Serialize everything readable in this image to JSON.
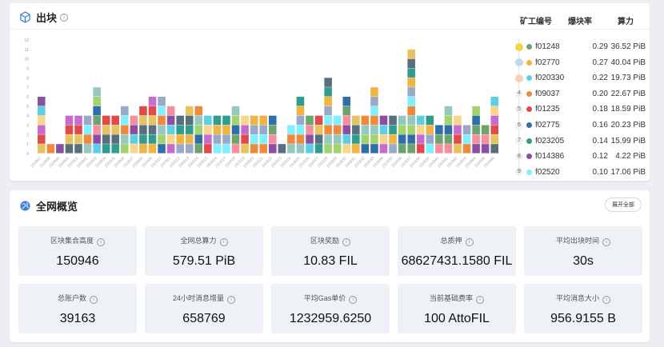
{
  "block_section": {
    "title": "出块",
    "leaderboard": {
      "headers": {
        "miner_id": "矿工编号",
        "rate": "爆块率",
        "power": "算力"
      },
      "rows": [
        {
          "rank": "1",
          "miner": "f01248",
          "color": "#6da36d",
          "rate": "0.29",
          "power": "36.52 PiB"
        },
        {
          "rank": "2",
          "miner": "f02770",
          "color": "#f2b441",
          "rate": "0.27",
          "power": "40.04 PiB"
        },
        {
          "rank": "3",
          "miner": "f020330",
          "color": "#5ccfe6",
          "rate": "0.22",
          "power": "19.73 PiB"
        },
        {
          "rank": "4",
          "miner": "f09037",
          "color": "#ef8a3c",
          "rate": "0.20",
          "power": "22.67 PiB"
        },
        {
          "rank": "5",
          "miner": "f01235",
          "color": "#e04a4a",
          "rate": "0.18",
          "power": "18.59 PiB"
        },
        {
          "rank": "6",
          "miner": "f02775",
          "color": "#2f6fa8",
          "rate": "0.16",
          "power": "20.23 PiB"
        },
        {
          "rank": "7",
          "miner": "f023205",
          "color": "#2f9c8e",
          "rate": "0.14",
          "power": "15.99 PiB"
        },
        {
          "rank": "8",
          "miner": "f014386",
          "color": "#8a4fa0",
          "rate": "0.12",
          "power": "4.22 PiB"
        },
        {
          "rank": "9",
          "miner": "f02520",
          "color": "#7ff0ff",
          "rate": "0.10",
          "power": "17.06 PiB"
        }
      ]
    }
  },
  "chart_data": {
    "type": "bar",
    "stacked": true,
    "ylim": [
      0,
      12
    ],
    "yticks": [
      "0",
      "1",
      "2",
      "3",
      "4",
      "5",
      "6",
      "7",
      "8",
      "9",
      "10",
      "11",
      "12"
    ],
    "categories": [
      "150897",
      "150898",
      "150899",
      "150900",
      "150901",
      "150902",
      "150903",
      "150904",
      "150905",
      "150906",
      "150907",
      "150908",
      "150909",
      "150910",
      "150911",
      "150912",
      "150913",
      "150914",
      "150915",
      "150916",
      "150917",
      "150918",
      "150919",
      "150920",
      "150921",
      "150922",
      "150923",
      "150924",
      "150925",
      "150926",
      "150927",
      "150928",
      "150929",
      "150930",
      "150931",
      "150932",
      "150933",
      "150934",
      "150935",
      "150936",
      "150937",
      "150938",
      "150939",
      "150940",
      "150941",
      "150942",
      "150943",
      "150944",
      "150945",
      "150946"
    ],
    "values": [
      6,
      1,
      1,
      4,
      4,
      4,
      7,
      4,
      4,
      5,
      4,
      5,
      6,
      6,
      5,
      4,
      5,
      5,
      4,
      4,
      4,
      5,
      4,
      4,
      4,
      4,
      1,
      3,
      6,
      4,
      4,
      8,
      4,
      6,
      4,
      4,
      7,
      4,
      4,
      4,
      11,
      4,
      4,
      3,
      5,
      4,
      3,
      5,
      3,
      6
    ],
    "palette": [
      "#e8c25e",
      "#6da36d",
      "#f2b441",
      "#5ccfe6",
      "#ef8a3c",
      "#e04a4a",
      "#2f6fa8",
      "#2f9c8e",
      "#8a4fa0",
      "#7ff0ff",
      "#c66cd0",
      "#a1d36e",
      "#5a6f7d",
      "#f58fa0",
      "#9aa9c8",
      "#f8d58a",
      "#94c8c0"
    ]
  },
  "network_section": {
    "title": "全网概览",
    "expand_label": "展开全部",
    "stats": [
      {
        "label": "区块集合高度",
        "value": "150946"
      },
      {
        "label": "全网总算力",
        "value": "579.51 PiB"
      },
      {
        "label": "区块奖励",
        "value": "10.83 FIL"
      },
      {
        "label": "总质押",
        "value": "68627431.1580 FIL"
      },
      {
        "label": "平均出块时间",
        "value": "30s"
      },
      {
        "label": "总账户数",
        "value": "39163"
      },
      {
        "label": "24小时消息增量",
        "value": "658769"
      },
      {
        "label": "平均Gas单价",
        "value": "1232959.6250"
      },
      {
        "label": "当前基础费率",
        "value": "100 AttoFIL"
      },
      {
        "label": "平均消息大小",
        "value": "956.9155 B"
      }
    ]
  }
}
